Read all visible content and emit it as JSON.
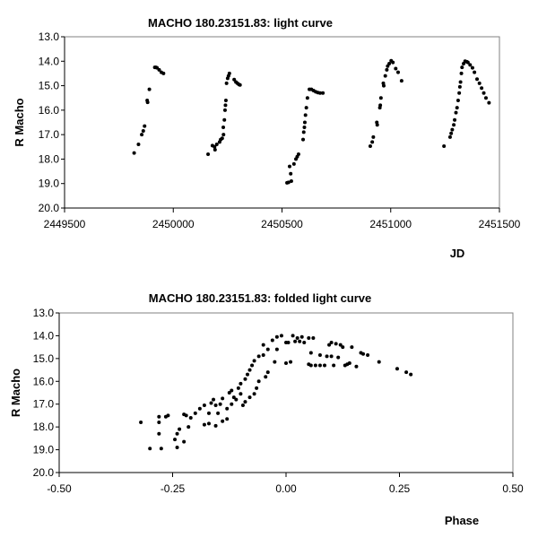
{
  "chart_data": [
    {
      "type": "scatter",
      "title": "MACHO 180.23151.83: light curve",
      "xlabel": "JD",
      "ylabel": "R Macho",
      "xlim": [
        2449500,
        2451500
      ],
      "ylim": [
        13.0,
        20.0
      ],
      "y_inverted": true,
      "xticks": [
        "2449500",
        "2450000",
        "2450500",
        "2451000",
        "2451500"
      ],
      "yticks": [
        "13.0",
        "14.0",
        "15.0",
        "16.0",
        "17.0",
        "18.0",
        "19.0",
        "20.0"
      ],
      "grid": false,
      "points": [
        [
          2449820,
          17.75
        ],
        [
          2449840,
          17.4
        ],
        [
          2449855,
          17.0
        ],
        [
          2449862,
          16.85
        ],
        [
          2449868,
          16.65
        ],
        [
          2449880,
          15.6
        ],
        [
          2449882,
          15.68
        ],
        [
          2449890,
          15.15
        ],
        [
          2449915,
          14.25
        ],
        [
          2449920,
          14.25
        ],
        [
          2449925,
          14.27
        ],
        [
          2449935,
          14.35
        ],
        [
          2449945,
          14.45
        ],
        [
          2449955,
          14.5
        ],
        [
          2450160,
          17.8
        ],
        [
          2450180,
          17.45
        ],
        [
          2450190,
          17.5
        ],
        [
          2450192,
          17.62
        ],
        [
          2450200,
          17.4
        ],
        [
          2450213,
          17.3
        ],
        [
          2450218,
          17.2
        ],
        [
          2450225,
          17.15
        ],
        [
          2450230,
          16.7
        ],
        [
          2450231,
          17.0
        ],
        [
          2450235,
          16.4
        ],
        [
          2450238,
          16.0
        ],
        [
          2450240,
          15.8
        ],
        [
          2450242,
          15.6
        ],
        [
          2450245,
          14.9
        ],
        [
          2450250,
          14.7
        ],
        [
          2450254,
          14.6
        ],
        [
          2450258,
          14.5
        ],
        [
          2450280,
          14.75
        ],
        [
          2450288,
          14.85
        ],
        [
          2450295,
          14.9
        ],
        [
          2450302,
          14.95
        ],
        [
          2450307,
          14.97
        ],
        [
          2450523,
          18.97
        ],
        [
          2450530,
          18.95
        ],
        [
          2450535,
          18.3
        ],
        [
          2450540,
          18.6
        ],
        [
          2450543,
          18.9
        ],
        [
          2450555,
          18.2
        ],
        [
          2450564,
          18.0
        ],
        [
          2450570,
          17.9
        ],
        [
          2450576,
          17.8
        ],
        [
          2450597,
          17.2
        ],
        [
          2450600,
          16.9
        ],
        [
          2450603,
          16.7
        ],
        [
          2450605,
          16.5
        ],
        [
          2450608,
          16.2
        ],
        [
          2450612,
          15.9
        ],
        [
          2450617,
          15.5
        ],
        [
          2450626,
          15.15
        ],
        [
          2450635,
          15.15
        ],
        [
          2450645,
          15.2
        ],
        [
          2450655,
          15.25
        ],
        [
          2450665,
          15.28
        ],
        [
          2450675,
          15.3
        ],
        [
          2450688,
          15.3
        ],
        [
          2450906,
          17.47
        ],
        [
          2450915,
          17.3
        ],
        [
          2450920,
          17.1
        ],
        [
          2450936,
          16.5
        ],
        [
          2450938,
          16.6
        ],
        [
          2450950,
          15.9
        ],
        [
          2450952,
          15.8
        ],
        [
          2450955,
          15.5
        ],
        [
          2450966,
          14.9
        ],
        [
          2450968,
          15.0
        ],
        [
          2450975,
          14.6
        ],
        [
          2450982,
          14.35
        ],
        [
          2450986,
          14.2
        ],
        [
          2450993,
          14.1
        ],
        [
          2451002,
          13.98
        ],
        [
          2451010,
          14.05
        ],
        [
          2451023,
          14.3
        ],
        [
          2451034,
          14.45
        ],
        [
          2451050,
          14.8
        ],
        [
          2451245,
          17.47
        ],
        [
          2451273,
          17.1
        ],
        [
          2451278,
          16.95
        ],
        [
          2451283,
          16.8
        ],
        [
          2451290,
          16.6
        ],
        [
          2451294,
          16.4
        ],
        [
          2451300,
          16.1
        ],
        [
          2451305,
          15.9
        ],
        [
          2451310,
          15.6
        ],
        [
          2451315,
          15.3
        ],
        [
          2451318,
          15.05
        ],
        [
          2451321,
          14.85
        ],
        [
          2451325,
          14.5
        ],
        [
          2451328,
          14.25
        ],
        [
          2451335,
          14.1
        ],
        [
          2451342,
          14.0
        ],
        [
          2451350,
          14.02
        ],
        [
          2451355,
          14.05
        ],
        [
          2451365,
          14.15
        ],
        [
          2451376,
          14.27
        ],
        [
          2451385,
          14.45
        ],
        [
          2451397,
          14.73
        ],
        [
          2451408,
          14.9
        ],
        [
          2451418,
          15.1
        ],
        [
          2451428,
          15.3
        ],
        [
          2451438,
          15.5
        ],
        [
          2451452,
          15.7
        ]
      ]
    },
    {
      "type": "scatter",
      "title": "MACHO 180.23151.83: folded light curve",
      "xlabel": "Phase",
      "ylabel": "R Macho",
      "xlim": [
        -0.5,
        0.5
      ],
      "ylim": [
        13.0,
        20.0
      ],
      "y_inverted": true,
      "xticks": [
        "-0.50",
        "-0.25",
        "0.00",
        "0.25",
        "0.50"
      ],
      "yticks": [
        "13.0",
        "14.0",
        "15.0",
        "16.0",
        "17.0",
        "18.0",
        "19.0",
        "20.0"
      ],
      "grid": false,
      "points": [
        [
          -0.32,
          17.8
        ],
        [
          -0.3,
          18.95
        ],
        [
          -0.28,
          17.55
        ],
        [
          -0.28,
          17.8
        ],
        [
          -0.28,
          18.3
        ],
        [
          -0.275,
          18.95
        ],
        [
          -0.265,
          17.55
        ],
        [
          -0.26,
          17.5
        ],
        [
          -0.245,
          18.55
        ],
        [
          -0.24,
          18.9
        ],
        [
          -0.24,
          18.3
        ],
        [
          -0.235,
          18.1
        ],
        [
          -0.225,
          18.65
        ],
        [
          -0.225,
          17.45
        ],
        [
          -0.22,
          17.5
        ],
        [
          -0.215,
          18.0
        ],
        [
          -0.21,
          17.6
        ],
        [
          -0.2,
          17.4
        ],
        [
          -0.19,
          17.2
        ],
        [
          -0.18,
          17.05
        ],
        [
          -0.18,
          17.9
        ],
        [
          -0.17,
          17.85
        ],
        [
          -0.17,
          17.4
        ],
        [
          -0.165,
          16.95
        ],
        [
          -0.16,
          16.8
        ],
        [
          -0.155,
          17.05
        ],
        [
          -0.155,
          17.95
        ],
        [
          -0.15,
          17.4
        ],
        [
          -0.145,
          17.0
        ],
        [
          -0.14,
          16.75
        ],
        [
          -0.14,
          17.75
        ],
        [
          -0.13,
          17.65
        ],
        [
          -0.13,
          17.2
        ],
        [
          -0.125,
          16.5
        ],
        [
          -0.12,
          16.4
        ],
        [
          -0.12,
          17.0
        ],
        [
          -0.115,
          16.7
        ],
        [
          -0.11,
          16.8
        ],
        [
          -0.105,
          16.3
        ],
        [
          -0.1,
          16.1
        ],
        [
          -0.1,
          16.55
        ],
        [
          -0.095,
          17.05
        ],
        [
          -0.09,
          15.9
        ],
        [
          -0.09,
          16.9
        ],
        [
          -0.085,
          15.7
        ],
        [
          -0.08,
          15.5
        ],
        [
          -0.08,
          16.7
        ],
        [
          -0.075,
          15.3
        ],
        [
          -0.07,
          15.1
        ],
        [
          -0.07,
          16.55
        ],
        [
          -0.065,
          16.3
        ],
        [
          -0.06,
          14.9
        ],
        [
          -0.06,
          16.0
        ],
        [
          -0.05,
          14.85
        ],
        [
          -0.05,
          14.4
        ],
        [
          -0.045,
          15.8
        ],
        [
          -0.04,
          14.6
        ],
        [
          -0.04,
          15.6
        ],
        [
          -0.03,
          14.2
        ],
        [
          -0.025,
          15.15
        ],
        [
          -0.02,
          14.05
        ],
        [
          -0.02,
          14.6
        ],
        [
          -0.01,
          14.0
        ],
        [
          0.0,
          15.2
        ],
        [
          0.0,
          14.3
        ],
        [
          0.005,
          14.3
        ],
        [
          0.01,
          15.15
        ],
        [
          0.015,
          14.0
        ],
        [
          0.02,
          14.25
        ],
        [
          0.025,
          14.1
        ],
        [
          0.03,
          14.25
        ],
        [
          0.035,
          14.05
        ],
        [
          0.04,
          14.3
        ],
        [
          0.05,
          14.1
        ],
        [
          0.05,
          15.25
        ],
        [
          0.055,
          15.3
        ],
        [
          0.055,
          14.75
        ],
        [
          0.06,
          14.1
        ],
        [
          0.065,
          15.3
        ],
        [
          0.075,
          15.3
        ],
        [
          0.075,
          14.85
        ],
        [
          0.085,
          15.3
        ],
        [
          0.09,
          14.9
        ],
        [
          0.095,
          14.4
        ],
        [
          0.1,
          14.9
        ],
        [
          0.1,
          14.3
        ],
        [
          0.105,
          15.3
        ],
        [
          0.11,
          14.35
        ],
        [
          0.115,
          14.95
        ],
        [
          0.12,
          14.4
        ],
        [
          0.125,
          14.5
        ],
        [
          0.13,
          15.3
        ],
        [
          0.135,
          15.25
        ],
        [
          0.14,
          15.2
        ],
        [
          0.145,
          14.5
        ],
        [
          0.155,
          15.35
        ],
        [
          0.165,
          14.75
        ],
        [
          0.17,
          14.8
        ],
        [
          0.18,
          14.85
        ],
        [
          0.205,
          15.15
        ],
        [
          0.245,
          15.45
        ],
        [
          0.265,
          15.6
        ],
        [
          0.275,
          15.7
        ]
      ]
    }
  ]
}
